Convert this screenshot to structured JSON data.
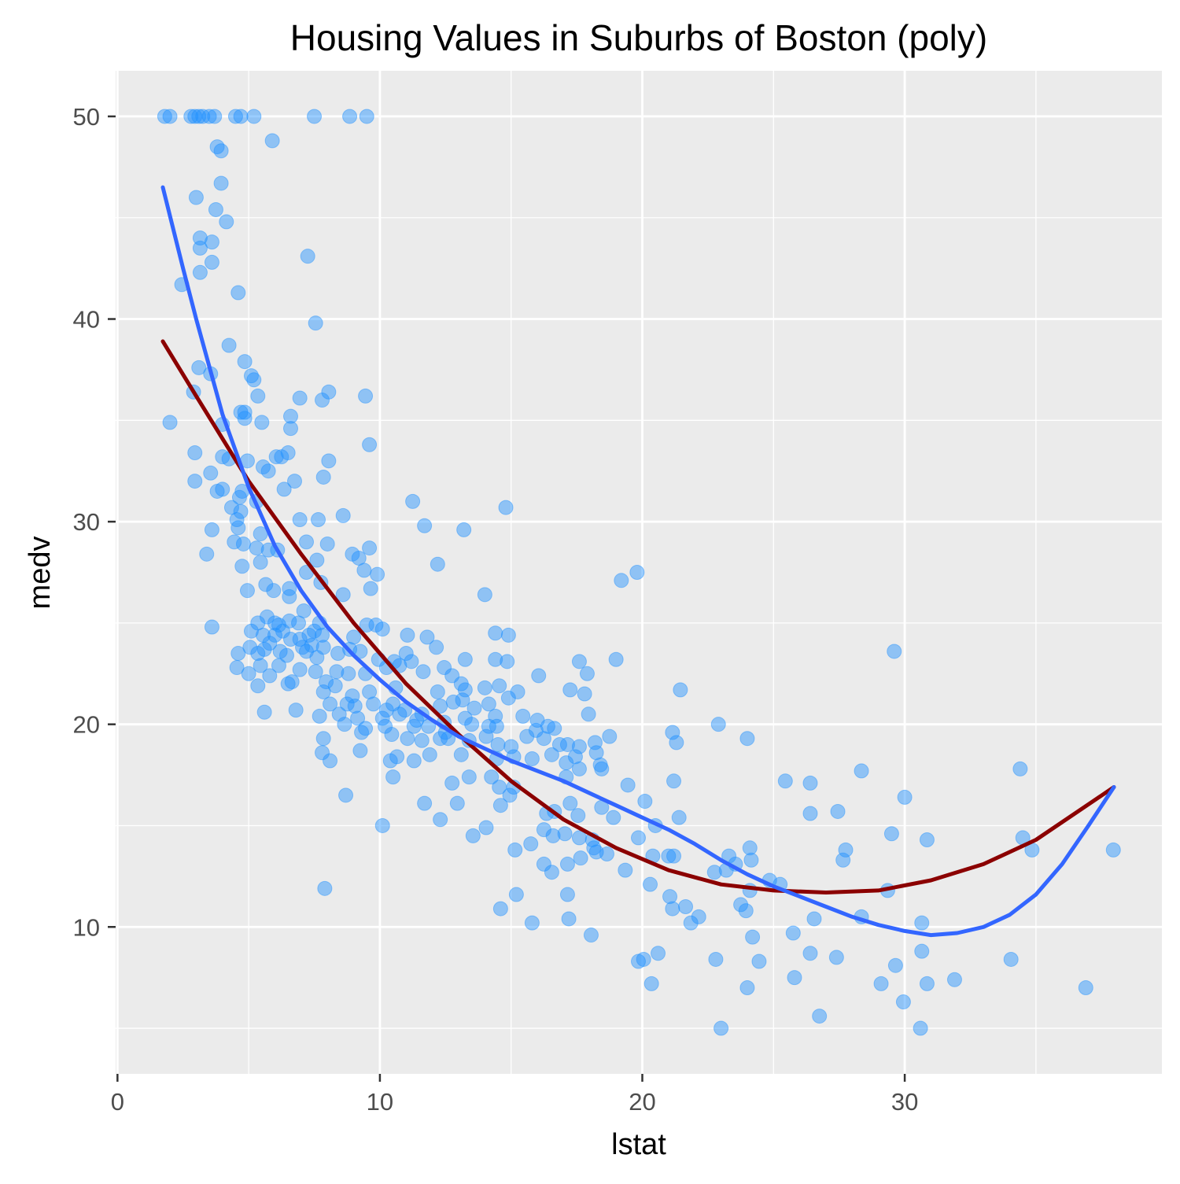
{
  "chart_data": {
    "type": "scatter",
    "title": "Housing Values in Suburbs of Boston (poly)",
    "xlabel": "lstat",
    "ylabel": "medv",
    "xlim": [
      -0.07,
      39.8
    ],
    "ylim": [
      2.75,
      52.25
    ],
    "x_ticks": [
      0,
      10,
      20,
      30
    ],
    "y_ticks": [
      10,
      20,
      30,
      40,
      50
    ],
    "grid": true,
    "legend": "none",
    "colors": {
      "points": "#1E90FF",
      "fit_degree2": "#8B0000",
      "fit_degree5": "#3366FF",
      "panel": "#EBEBEB",
      "grid": "#FFFFFF",
      "axis_text": "#4D4D4D"
    },
    "points": [
      [
        1.8,
        50
      ],
      [
        2.0,
        50
      ],
      [
        2.8,
        50
      ],
      [
        2.95,
        50
      ],
      [
        3.1,
        50
      ],
      [
        3.25,
        50
      ],
      [
        3.5,
        50
      ],
      [
        3.7,
        50
      ],
      [
        4.5,
        50
      ],
      [
        4.7,
        50
      ],
      [
        5.2,
        50
      ],
      [
        7.5,
        50
      ],
      [
        8.85,
        50
      ],
      [
        9.5,
        50
      ],
      [
        3.8,
        48.5
      ],
      [
        3.95,
        48.3
      ],
      [
        5.9,
        48.8
      ],
      [
        3.0,
        46.0
      ],
      [
        3.95,
        46.7
      ],
      [
        3.75,
        45.4
      ],
      [
        4.15,
        44.8
      ],
      [
        3.15,
        44.0
      ],
      [
        3.15,
        43.5
      ],
      [
        3.6,
        43.8
      ],
      [
        3.6,
        42.8
      ],
      [
        3.15,
        42.3
      ],
      [
        7.25,
        43.1
      ],
      [
        2.45,
        41.7
      ],
      [
        4.6,
        41.3
      ],
      [
        7.55,
        39.8
      ],
      [
        4.25,
        38.7
      ],
      [
        3.1,
        37.6
      ],
      [
        4.85,
        37.9
      ],
      [
        5.1,
        37.2
      ],
      [
        5.2,
        37.0
      ],
      [
        3.55,
        37.3
      ],
      [
        2.9,
        36.4
      ],
      [
        6.95,
        36.1
      ],
      [
        5.35,
        36.2
      ],
      [
        8.05,
        36.4
      ],
      [
        7.8,
        36.0
      ],
      [
        9.45,
        36.2
      ],
      [
        2.0,
        34.9
      ],
      [
        4.7,
        35.4
      ],
      [
        4.85,
        35.4
      ],
      [
        4.85,
        35.1
      ],
      [
        4.0,
        34.8
      ],
      [
        5.5,
        34.9
      ],
      [
        6.6,
        35.2
      ],
      [
        6.6,
        34.6
      ],
      [
        9.6,
        33.8
      ],
      [
        2.95,
        33.4
      ],
      [
        4.0,
        33.2
      ],
      [
        4.25,
        33.1
      ],
      [
        4.95,
        33.0
      ],
      [
        6.05,
        33.2
      ],
      [
        6.25,
        33.2
      ],
      [
        6.5,
        33.4
      ],
      [
        8.05,
        33.0
      ],
      [
        5.55,
        32.7
      ],
      [
        5.75,
        32.5
      ],
      [
        3.55,
        32.4
      ],
      [
        2.95,
        32.0
      ],
      [
        6.75,
        32.0
      ],
      [
        7.85,
        32.2
      ],
      [
        3.8,
        31.5
      ],
      [
        4.0,
        31.6
      ],
      [
        4.75,
        31.5
      ],
      [
        4.65,
        31.2
      ],
      [
        5.3,
        31.0
      ],
      [
        6.35,
        31.6
      ],
      [
        4.35,
        30.7
      ],
      [
        4.55,
        30.1
      ],
      [
        4.7,
        30.5
      ],
      [
        6.95,
        30.1
      ],
      [
        7.65,
        30.1
      ],
      [
        8.6,
        30.3
      ],
      [
        14.8,
        30.7
      ],
      [
        3.6,
        29.6
      ],
      [
        4.45,
        29.0
      ],
      [
        4.6,
        29.7
      ],
      [
        4.8,
        28.9
      ],
      [
        5.45,
        29.4
      ],
      [
        5.3,
        28.7
      ],
      [
        5.75,
        28.6
      ],
      [
        6.1,
        28.6
      ],
      [
        7.2,
        29.0
      ],
      [
        8.0,
        28.9
      ],
      [
        9.2,
        28.2
      ],
      [
        8.95,
        28.4
      ],
      [
        9.6,
        28.7
      ],
      [
        3.4,
        28.4
      ],
      [
        4.75,
        27.8
      ],
      [
        5.45,
        28.0
      ],
      [
        5.65,
        26.9
      ],
      [
        7.2,
        27.5
      ],
      [
        7.6,
        28.1
      ],
      [
        9.4,
        27.6
      ],
      [
        9.9,
        27.4
      ],
      [
        12.2,
        27.9
      ],
      [
        13.2,
        29.6
      ],
      [
        11.7,
        29.8
      ],
      [
        11.25,
        31.0
      ],
      [
        4.95,
        26.6
      ],
      [
        5.95,
        26.6
      ],
      [
        6.55,
        26.3
      ],
      [
        6.55,
        26.7
      ],
      [
        7.75,
        27.0
      ],
      [
        8.6,
        26.4
      ],
      [
        9.65,
        26.7
      ],
      [
        7.1,
        25.6
      ],
      [
        19.2,
        27.1
      ],
      [
        19.8,
        27.5
      ],
      [
        14.0,
        26.4
      ],
      [
        3.6,
        24.8
      ],
      [
        5.35,
        25.0
      ],
      [
        5.7,
        25.3
      ],
      [
        6.0,
        25.0
      ],
      [
        6.15,
        24.9
      ],
      [
        6.55,
        25.1
      ],
      [
        6.9,
        25.0
      ],
      [
        7.3,
        24.4
      ],
      [
        7.7,
        25.0
      ],
      [
        5.1,
        24.6
      ],
      [
        5.55,
        24.4
      ],
      [
        6.0,
        24.4
      ],
      [
        6.3,
        24.6
      ],
      [
        6.6,
        24.2
      ],
      [
        6.95,
        24.2
      ],
      [
        7.5,
        24.6
      ],
      [
        7.8,
        24.4
      ],
      [
        9.0,
        24.3
      ],
      [
        9.5,
        24.9
      ],
      [
        9.85,
        24.9
      ],
      [
        10.1,
        24.7
      ],
      [
        11.05,
        24.4
      ],
      [
        11.8,
        24.3
      ],
      [
        14.4,
        24.5
      ],
      [
        14.9,
        24.4
      ],
      [
        4.6,
        23.5
      ],
      [
        5.05,
        23.8
      ],
      [
        5.35,
        23.5
      ],
      [
        5.6,
        23.7
      ],
      [
        5.8,
        24.0
      ],
      [
        6.2,
        23.6
      ],
      [
        6.45,
        23.4
      ],
      [
        7.05,
        23.8
      ],
      [
        7.2,
        23.6
      ],
      [
        7.4,
        23.9
      ],
      [
        7.6,
        23.3
      ],
      [
        7.85,
        23.8
      ],
      [
        8.4,
        23.5
      ],
      [
        8.85,
        23.7
      ],
      [
        9.25,
        23.6
      ],
      [
        9.95,
        23.2
      ],
      [
        10.55,
        23.1
      ],
      [
        11.0,
        23.5
      ],
      [
        11.2,
        23.1
      ],
      [
        12.15,
        23.8
      ],
      [
        13.25,
        23.2
      ],
      [
        14.4,
        23.2
      ],
      [
        14.85,
        23.1
      ],
      [
        17.6,
        23.1
      ],
      [
        19.0,
        23.2
      ],
      [
        29.6,
        23.6
      ],
      [
        4.55,
        22.8
      ],
      [
        5.0,
        22.5
      ],
      [
        5.45,
        22.9
      ],
      [
        5.8,
        22.4
      ],
      [
        6.15,
        22.9
      ],
      [
        6.65,
        22.1
      ],
      [
        6.95,
        22.7
      ],
      [
        7.55,
        22.6
      ],
      [
        7.95,
        22.1
      ],
      [
        8.35,
        22.6
      ],
      [
        8.8,
        22.5
      ],
      [
        9.45,
        22.5
      ],
      [
        10.25,
        22.8
      ],
      [
        10.75,
        22.9
      ],
      [
        11.65,
        22.6
      ],
      [
        12.45,
        22.8
      ],
      [
        12.75,
        22.4
      ],
      [
        13.1,
        22.0
      ],
      [
        14.55,
        21.9
      ],
      [
        16.05,
        22.4
      ],
      [
        17.9,
        22.5
      ],
      [
        5.35,
        21.9
      ],
      [
        6.5,
        22.0
      ],
      [
        7.85,
        21.6
      ],
      [
        8.3,
        21.9
      ],
      [
        8.95,
        21.4
      ],
      [
        9.6,
        21.6
      ],
      [
        10.6,
        21.8
      ],
      [
        12.2,
        21.6
      ],
      [
        13.25,
        21.7
      ],
      [
        14.0,
        21.8
      ],
      [
        15.25,
        21.6
      ],
      [
        17.25,
        21.7
      ],
      [
        17.8,
        21.5
      ],
      [
        21.45,
        21.7
      ],
      [
        8.1,
        21.0
      ],
      [
        8.75,
        21.0
      ],
      [
        9.05,
        20.9
      ],
      [
        9.75,
        21.0
      ],
      [
        10.25,
        20.7
      ],
      [
        10.5,
        21.0
      ],
      [
        10.95,
        20.7
      ],
      [
        11.6,
        20.5
      ],
      [
        12.3,
        20.9
      ],
      [
        12.8,
        21.1
      ],
      [
        13.15,
        21.2
      ],
      [
        13.6,
        20.8
      ],
      [
        14.15,
        21.0
      ],
      [
        14.9,
        21.3
      ],
      [
        5.6,
        20.6
      ],
      [
        6.8,
        20.7
      ],
      [
        7.7,
        20.4
      ],
      [
        8.45,
        20.5
      ],
      [
        9.15,
        20.3
      ],
      [
        10.1,
        20.3
      ],
      [
        10.75,
        20.5
      ],
      [
        11.4,
        20.2
      ],
      [
        12.45,
        20.1
      ],
      [
        13.25,
        20.3
      ],
      [
        14.4,
        20.4
      ],
      [
        15.45,
        20.4
      ],
      [
        16.0,
        20.2
      ],
      [
        17.95,
        20.5
      ],
      [
        8.65,
        20.0
      ],
      [
        9.45,
        19.8
      ],
      [
        10.2,
        19.9
      ],
      [
        11.3,
        19.9
      ],
      [
        11.85,
        19.9
      ],
      [
        12.5,
        19.6
      ],
      [
        13.5,
        20.0
      ],
      [
        14.15,
        19.9
      ],
      [
        14.45,
        19.9
      ],
      [
        15.95,
        19.7
      ],
      [
        16.4,
        19.9
      ],
      [
        16.65,
        19.8
      ],
      [
        17.15,
        19.0
      ],
      [
        22.9,
        20.0
      ],
      [
        7.85,
        19.3
      ],
      [
        9.3,
        19.6
      ],
      [
        10.45,
        19.5
      ],
      [
        11.05,
        19.3
      ],
      [
        11.6,
        19.2
      ],
      [
        12.3,
        19.3
      ],
      [
        12.6,
        19.3
      ],
      [
        13.4,
        19.2
      ],
      [
        14.05,
        19.4
      ],
      [
        14.5,
        19.0
      ],
      [
        15.0,
        18.9
      ],
      [
        15.6,
        19.4
      ],
      [
        16.25,
        19.3
      ],
      [
        16.85,
        19.0
      ],
      [
        17.6,
        18.9
      ],
      [
        18.2,
        19.1
      ],
      [
        18.75,
        19.4
      ],
      [
        21.15,
        19.6
      ],
      [
        21.3,
        19.1
      ],
      [
        24.0,
        19.3
      ],
      [
        7.8,
        18.6
      ],
      [
        8.1,
        18.2
      ],
      [
        9.25,
        18.7
      ],
      [
        10.4,
        18.2
      ],
      [
        10.65,
        18.4
      ],
      [
        11.3,
        18.2
      ],
      [
        11.9,
        18.5
      ],
      [
        13.1,
        18.5
      ],
      [
        14.45,
        18.3
      ],
      [
        15.1,
        18.4
      ],
      [
        15.8,
        18.3
      ],
      [
        16.55,
        18.5
      ],
      [
        17.1,
        18.1
      ],
      [
        17.45,
        18.4
      ],
      [
        18.25,
        18.6
      ],
      [
        18.4,
        18.0
      ],
      [
        10.5,
        17.4
      ],
      [
        12.75,
        17.1
      ],
      [
        13.4,
        17.4
      ],
      [
        14.25,
        17.4
      ],
      [
        14.55,
        16.9
      ],
      [
        15.1,
        16.9
      ],
      [
        17.1,
        17.4
      ],
      [
        17.6,
        17.8
      ],
      [
        18.45,
        17.8
      ],
      [
        19.45,
        17.0
      ],
      [
        21.2,
        17.2
      ],
      [
        25.45,
        17.2
      ],
      [
        26.4,
        17.1
      ],
      [
        28.35,
        17.7
      ],
      [
        34.4,
        17.8
      ],
      [
        8.7,
        16.5
      ],
      [
        11.7,
        16.1
      ],
      [
        12.95,
        16.1
      ],
      [
        14.6,
        16.0
      ],
      [
        14.95,
        16.5
      ],
      [
        16.35,
        15.6
      ],
      [
        16.65,
        15.7
      ],
      [
        17.25,
        16.1
      ],
      [
        17.55,
        15.5
      ],
      [
        18.45,
        15.9
      ],
      [
        18.9,
        15.4
      ],
      [
        20.1,
        16.2
      ],
      [
        21.4,
        15.4
      ],
      [
        26.4,
        15.6
      ],
      [
        27.45,
        15.7
      ],
      [
        30.0,
        16.4
      ],
      [
        10.1,
        15.0
      ],
      [
        12.3,
        15.3
      ],
      [
        13.55,
        14.5
      ],
      [
        14.05,
        14.9
      ],
      [
        15.15,
        13.8
      ],
      [
        15.75,
        14.1
      ],
      [
        16.25,
        14.8
      ],
      [
        16.6,
        14.5
      ],
      [
        17.05,
        14.6
      ],
      [
        17.6,
        14.4
      ],
      [
        18.1,
        14.3
      ],
      [
        18.25,
        13.7
      ],
      [
        19.85,
        14.4
      ],
      [
        20.5,
        15.0
      ],
      [
        21.2,
        13.5
      ],
      [
        23.3,
        13.5
      ],
      [
        24.1,
        13.9
      ],
      [
        27.75,
        13.8
      ],
      [
        29.5,
        14.6
      ],
      [
        30.85,
        14.3
      ],
      [
        34.5,
        14.4
      ],
      [
        34.85,
        13.8
      ],
      [
        37.95,
        13.8
      ],
      [
        16.25,
        13.1
      ],
      [
        16.55,
        12.7
      ],
      [
        17.15,
        13.1
      ],
      [
        17.65,
        13.4
      ],
      [
        18.15,
        13.9
      ],
      [
        18.65,
        13.6
      ],
      [
        19.35,
        12.8
      ],
      [
        20.4,
        13.5
      ],
      [
        21.0,
        13.5
      ],
      [
        22.75,
        12.7
      ],
      [
        23.2,
        12.8
      ],
      [
        23.55,
        13.1
      ],
      [
        24.15,
        13.3
      ],
      [
        27.65,
        13.3
      ],
      [
        7.9,
        11.9
      ],
      [
        15.2,
        11.6
      ],
      [
        17.15,
        11.6
      ],
      [
        20.3,
        12.1
      ],
      [
        21.05,
        11.5
      ],
      [
        21.65,
        11.0
      ],
      [
        23.75,
        11.1
      ],
      [
        24.1,
        11.8
      ],
      [
        24.85,
        12.3
      ],
      [
        25.25,
        12.1
      ],
      [
        29.35,
        11.8
      ],
      [
        14.6,
        10.9
      ],
      [
        15.8,
        10.2
      ],
      [
        17.2,
        10.4
      ],
      [
        21.15,
        10.9
      ],
      [
        21.85,
        10.2
      ],
      [
        22.15,
        10.5
      ],
      [
        23.95,
        10.8
      ],
      [
        25.75,
        9.7
      ],
      [
        26.55,
        10.4
      ],
      [
        28.35,
        10.5
      ],
      [
        30.65,
        10.2
      ],
      [
        18.05,
        9.6
      ],
      [
        20.6,
        8.7
      ],
      [
        22.8,
        8.4
      ],
      [
        24.2,
        9.5
      ],
      [
        24.45,
        8.3
      ],
      [
        26.4,
        8.7
      ],
      [
        27.4,
        8.5
      ],
      [
        30.65,
        8.8
      ],
      [
        34.05,
        8.4
      ],
      [
        19.85,
        8.3
      ],
      [
        20.05,
        8.4
      ],
      [
        20.35,
        7.2
      ],
      [
        24.0,
        7.0
      ],
      [
        25.8,
        7.5
      ],
      [
        29.1,
        7.2
      ],
      [
        29.65,
        8.1
      ],
      [
        30.85,
        7.2
      ],
      [
        31.9,
        7.4
      ],
      [
        36.9,
        7.0
      ],
      [
        29.95,
        6.3
      ],
      [
        26.75,
        5.6
      ],
      [
        23.0,
        5.0
      ],
      [
        30.6,
        5.0
      ]
    ],
    "fit_lines": [
      {
        "name": "",
        "degree": 2,
        "color": "#8B0000",
        "x": [
          1.73,
          3,
          5,
          7,
          9,
          11,
          13,
          15,
          17,
          19,
          21,
          23,
          25,
          27,
          29,
          31,
          33,
          35,
          37.97
        ],
        "y": [
          38.9,
          36.2,
          32.0,
          28.4,
          25.0,
          22.0,
          19.5,
          17.2,
          15.3,
          13.9,
          12.8,
          12.1,
          11.8,
          11.7,
          11.8,
          12.3,
          13.1,
          14.3,
          16.9
        ]
      },
      {
        "name": "",
        "degree": 5,
        "color": "#3366FF",
        "x": [
          1.73,
          2.5,
          3,
          4,
          5,
          6,
          7,
          8,
          9,
          10,
          11,
          12,
          13,
          14,
          15,
          16,
          17,
          18,
          19,
          20,
          21,
          22,
          23,
          24,
          25,
          26,
          27,
          28,
          29,
          30,
          31,
          32,
          33,
          34,
          35,
          36,
          37,
          37.97
        ],
        "y": [
          46.5,
          42.5,
          40.0,
          35.3,
          31.7,
          28.8,
          26.6,
          24.8,
          23.4,
          22.2,
          21.1,
          20.2,
          19.4,
          18.8,
          18.2,
          17.7,
          17.2,
          16.6,
          16.0,
          15.4,
          14.8,
          14.1,
          13.3,
          12.6,
          12.0,
          11.5,
          11.0,
          10.5,
          10.1,
          9.8,
          9.6,
          9.7,
          10.0,
          10.6,
          11.6,
          13.1,
          15.0,
          16.9
        ]
      }
    ]
  }
}
